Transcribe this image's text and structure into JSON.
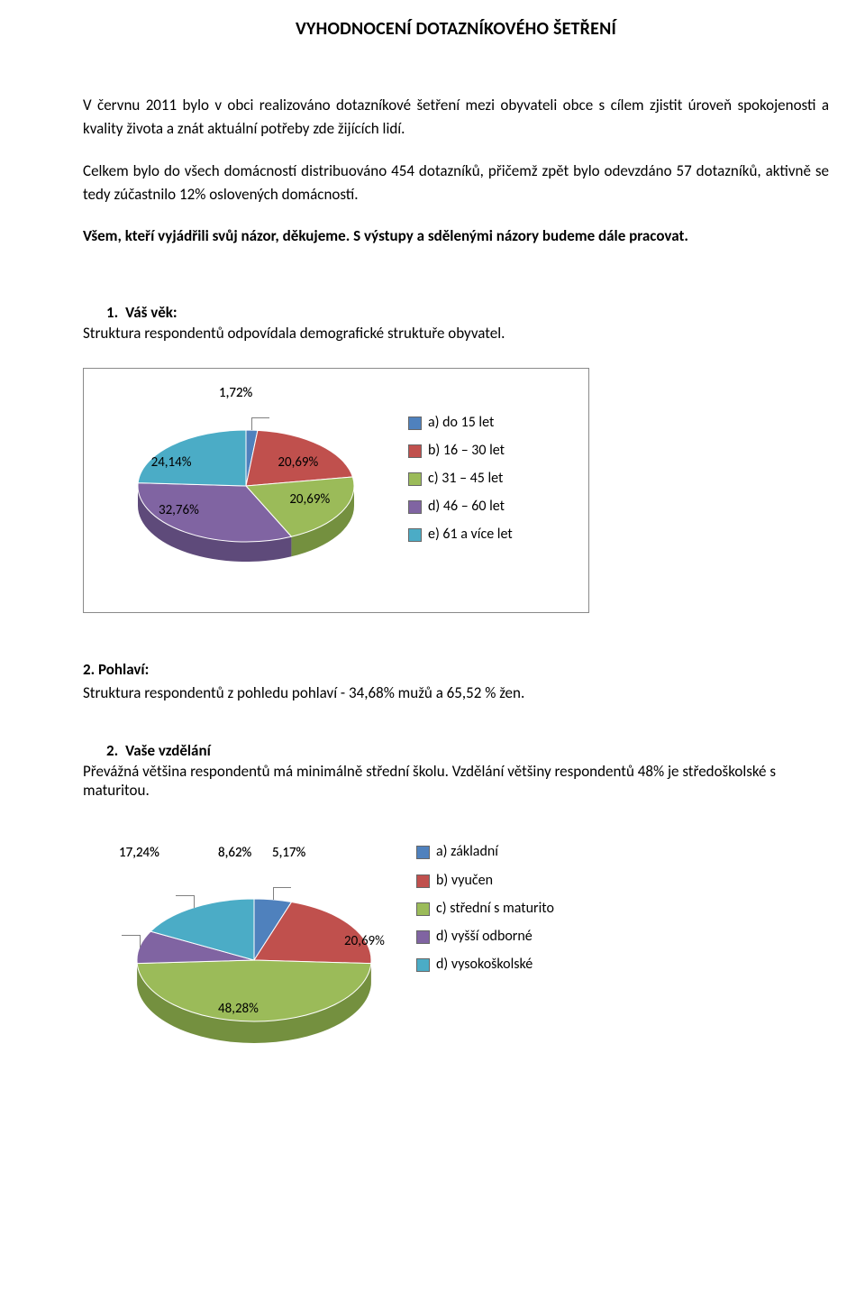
{
  "title": "VYHODNOCENÍ DOTAZNÍKOVÉHO ŠETŘENÍ",
  "paragraphs": {
    "p1": "V červnu 2011 bylo v obci realizováno dotazníkové šetření mezi obyvateli obce s cílem zjistit úroveň spokojenosti a kvality života a znát aktuální potřeby zde žijících lidí.",
    "p2": "Celkem bylo do všech domácností distribuováno 454 dotazníků, přičemž zpět bylo odevzdáno 57 dotazníků, aktivně se tedy zúčastnilo 12% oslovených domácností.",
    "p3": "Všem, kteří vyjádřili svůj názor, děkujeme. S výstupy a sdělenými názory budeme dále pracovat."
  },
  "q1": {
    "number": "1.",
    "label": "Váš věk:",
    "sub": "Struktura respondentů odpovídala demografické struktuře obyvatel.",
    "chart": {
      "type": "pie3d",
      "background": "#ffffff",
      "slices": [
        {
          "key": "a",
          "value": 1.72,
          "label": "1,72%",
          "color": "#4f81bd",
          "side": "#3a6296",
          "legend": "a) do 15 let"
        },
        {
          "key": "b",
          "value": 20.69,
          "label": "20,69%",
          "color": "#c0504d",
          "side": "#933c39",
          "legend": "b) 16 – 30 let"
        },
        {
          "key": "c",
          "value": 20.69,
          "label": "20,69%",
          "color": "#9bbb59",
          "side": "#74903f",
          "legend": "c) 31 – 45 let"
        },
        {
          "key": "d",
          "value": 32.76,
          "label": "32,76%",
          "color": "#8064a2",
          "side": "#5e4a7a",
          "legend": "d) 46 – 60 let"
        },
        {
          "key": "e",
          "value": 24.14,
          "label": "24,14%",
          "color": "#4bacc6",
          "side": "#358296",
          "legend": "e) 61 a více let"
        }
      ]
    }
  },
  "q2": {
    "heading_bold": "2. Pohlaví:",
    "text": "Struktura respondentů z pohledu pohlaví - 34,68%  mužů a 65,52 % žen."
  },
  "q3": {
    "number": "2.",
    "label": "Vaše vzdělání",
    "sub_plain": "Převážná většina respondentů má minimálně střední školu",
    "sub_after": ". Vzdělání většiny respondentů 48% je středoškolské s maturitou.",
    "chart": {
      "type": "pie3d",
      "background": "#ffffff",
      "slices": [
        {
          "key": "a",
          "value": 5.17,
          "label": "5,17%",
          "color": "#4f81bd",
          "side": "#3a6296",
          "legend": "a) základní"
        },
        {
          "key": "b",
          "value": 20.69,
          "label": "20,69%",
          "color": "#c0504d",
          "side": "#933c39",
          "legend": "b) vyučen"
        },
        {
          "key": "c",
          "value": 48.28,
          "label": "48,28%",
          "color": "#9bbb59",
          "side": "#74903f",
          "legend": "c) střední s maturito"
        },
        {
          "key": "d",
          "value": 8.62,
          "label": "8,62%",
          "color": "#8064a2",
          "side": "#5e4a7a",
          "legend": "d) vyšší odborné"
        },
        {
          "key": "e",
          "value": 17.24,
          "label": "17,24%",
          "color": "#4bacc6",
          "side": "#358296",
          "legend": "d) vysokoškolské"
        }
      ]
    }
  },
  "legend_swatch_border": "#666666"
}
